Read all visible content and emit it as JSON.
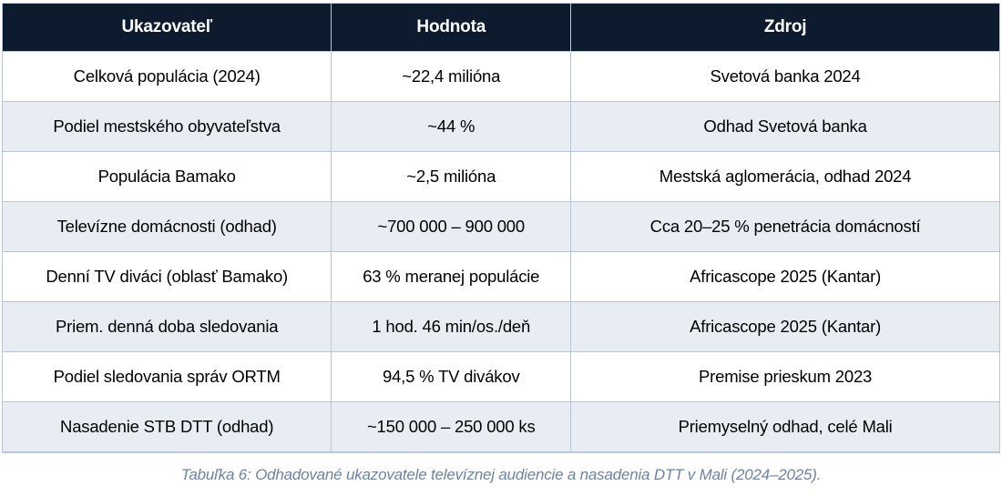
{
  "table": {
    "columns": [
      {
        "label": "Ukazovateľ"
      },
      {
        "label": "Hodnota"
      },
      {
        "label": "Zdroj"
      }
    ],
    "rows": [
      {
        "indicator": "Celková populácia (2024)",
        "value": "~22,4 milióna",
        "source": "Svetová banka 2024"
      },
      {
        "indicator": "Podiel mestského obyvateľstva",
        "value": "~44 %",
        "source": "Odhad Svetová banka"
      },
      {
        "indicator": "Populácia Bamako",
        "value": "~2,5 milióna",
        "source": "Mestská aglomerácia, odhad 2024"
      },
      {
        "indicator": "Televízne domácnosti (odhad)",
        "value": "~700 000 – 900 000",
        "source": "Cca 20–25 % penetrácia domácností"
      },
      {
        "indicator": "Denní TV diváci (oblasť Bamako)",
        "value": "63 % meranej populácie",
        "source": "Africascope 2025 (Kantar)"
      },
      {
        "indicator": "Priem. denná doba sledovania",
        "value": "1 hod. 46 min/os./deň",
        "source": "Africascope 2025 (Kantar)"
      },
      {
        "indicator": "Podiel sledovania správ ORTM",
        "value": "94,5 % TV divákov",
        "source": "Premise prieskum 2023"
      },
      {
        "indicator": "Nasadenie STB DTT (odhad)",
        "value": "~150 000 – 250 000 ks",
        "source": "Priemyselný odhad, celé Mali"
      }
    ]
  },
  "caption": "Tabuľka 6: Odhadované ukazovatele televíznej audiencie a nasadenia DTT v Mali (2024–2025).",
  "colors": {
    "header_bg": "#0d1b2e",
    "header_text": "#ffffff",
    "row_alt_bg": "#e8edf4",
    "border": "#b9c6da",
    "caption_text": "#6f82a0"
  }
}
